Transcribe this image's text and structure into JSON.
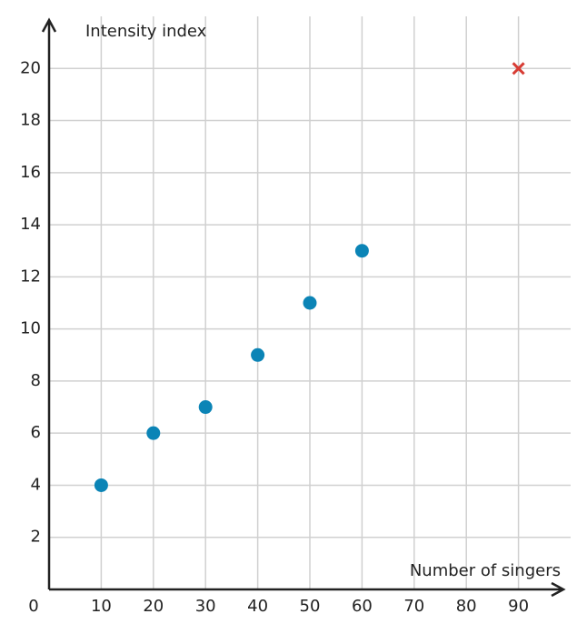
{
  "chart_data": {
    "type": "scatter",
    "x_label": "Number of singers",
    "y_label": "Intensity index",
    "xlim": [
      0,
      100
    ],
    "ylim": [
      0,
      22
    ],
    "xticks": [
      0,
      10,
      20,
      30,
      40,
      50,
      60,
      70,
      80,
      90
    ],
    "yticks": [
      2,
      4,
      6,
      8,
      10,
      12,
      14,
      16,
      18,
      20
    ],
    "grid": true,
    "series": [
      {
        "color": "#0b84b6",
        "marker": "circle",
        "x": [
          10,
          20,
          30,
          40,
          50,
          60
        ],
        "values": [
          4,
          6,
          7,
          9,
          11,
          13
        ]
      },
      {
        "color": "#d73c34",
        "marker": "x",
        "x": [
          90
        ],
        "values": [
          20
        ]
      }
    ]
  }
}
